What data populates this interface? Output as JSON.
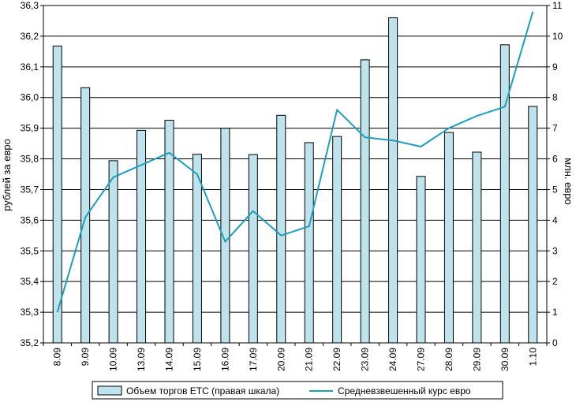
{
  "chart_data": {
    "type": "bar+line",
    "categories": [
      "8.09",
      "9.09",
      "10.09",
      "13.09",
      "14.09",
      "15.09",
      "16.09",
      "17.09",
      "20.09",
      "21.09",
      "22.09",
      "23.09",
      "24.09",
      "27.09",
      "28.09",
      "29.09",
      "30.09",
      "1.10"
    ],
    "series": [
      {
        "name": "Объем торгов ЕТС (правая шкала)",
        "type": "bar",
        "axis": "right",
        "values": [
          9.68,
          8.32,
          5.94,
          6.93,
          7.26,
          6.15,
          7.0,
          6.14,
          7.42,
          6.53,
          6.73,
          9.23,
          10.6,
          5.43,
          6.86,
          6.22,
          9.72,
          7.71
        ]
      },
      {
        "name": "Средневзвешенный курс евро",
        "type": "line",
        "axis": "left",
        "values": [
          35.3,
          35.61,
          35.74,
          35.78,
          35.82,
          35.75,
          35.53,
          35.63,
          35.55,
          35.58,
          35.96,
          35.87,
          35.86,
          35.84,
          35.9,
          35.94,
          35.97,
          36.28
        ]
      }
    ],
    "y_left": {
      "label": "рублей за евро",
      "ylim": [
        35.2,
        36.3
      ],
      "ticks": [
        "35,2",
        "35,3",
        "35,4",
        "35,5",
        "35,6",
        "35,7",
        "35,8",
        "35,9",
        "36,0",
        "36,1",
        "36,2",
        "36,3"
      ]
    },
    "y_right": {
      "label": "млн. евро",
      "ylim": [
        0,
        11
      ],
      "ticks": [
        "0",
        "1",
        "2",
        "3",
        "4",
        "5",
        "6",
        "7",
        "8",
        "9",
        "10",
        "11"
      ]
    },
    "grid": true,
    "legend_position": "bottom",
    "colors": {
      "bar_fill": "#bfe3ec",
      "bar_stroke": "#000000",
      "line": "#1a9fbf",
      "grid": "#000000"
    }
  }
}
